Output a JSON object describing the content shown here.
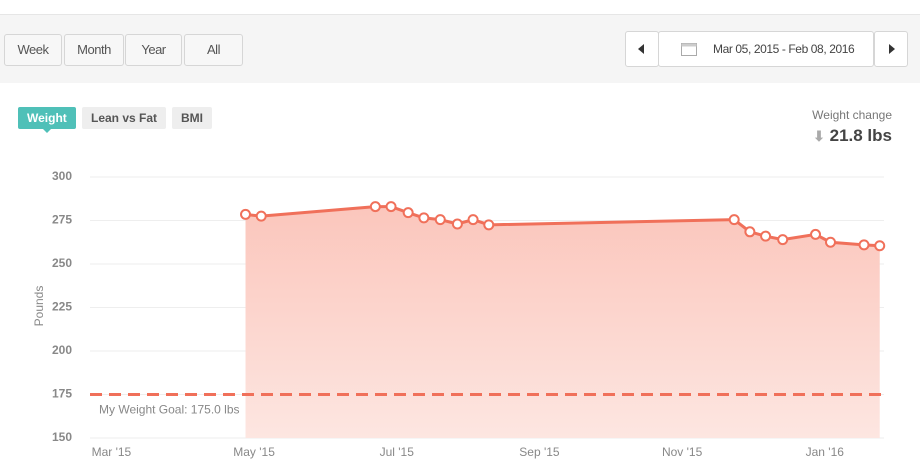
{
  "toolbar": {
    "ranges": [
      "Week",
      "Month",
      "Year",
      "All"
    ],
    "active_range": 2,
    "date_range": "Mar 05, 2015 - Feb 08, 2016"
  },
  "tabs": [
    "Weight",
    "Lean vs Fat",
    "BMI"
  ],
  "active_tab": 0,
  "weight_change": {
    "label": "Weight change",
    "value": "21.8 lbs"
  },
  "chart_data": {
    "type": "area",
    "y_label": "Pounds",
    "x": [
      4.88,
      5.1,
      6.7,
      6.92,
      7.16,
      7.38,
      7.61,
      7.85,
      8.07,
      8.29,
      11.73,
      11.95,
      12.17,
      12.41,
      12.87,
      13.08,
      13.55,
      13.77
    ],
    "series": [
      {
        "name": "Weight",
        "color": "#f0705a",
        "values": [
          278.5,
          277.5,
          283,
          283,
          279.5,
          276.5,
          275.5,
          273,
          275.5,
          272.5,
          275.5,
          268.5,
          266,
          264,
          267,
          262.5,
          261,
          260.5
        ]
      }
    ],
    "xlim": [
      2.7,
      13.83
    ],
    "xticks": [
      {
        "value": 3,
        "label": "Mar '15"
      },
      {
        "value": 5,
        "label": "May '15"
      },
      {
        "value": 7,
        "label": "Jul '15"
      },
      {
        "value": 9,
        "label": "Sep '15"
      },
      {
        "value": 11,
        "label": "Nov '15"
      },
      {
        "value": 13,
        "label": "Jan '16"
      }
    ],
    "ylim": [
      150,
      300
    ],
    "yticks": [
      150,
      175,
      200,
      225,
      250,
      275,
      300
    ],
    "grid": true,
    "goal": {
      "label": "My Weight Goal: 175.0 lbs",
      "value": 175,
      "color": "#f0705a"
    }
  }
}
